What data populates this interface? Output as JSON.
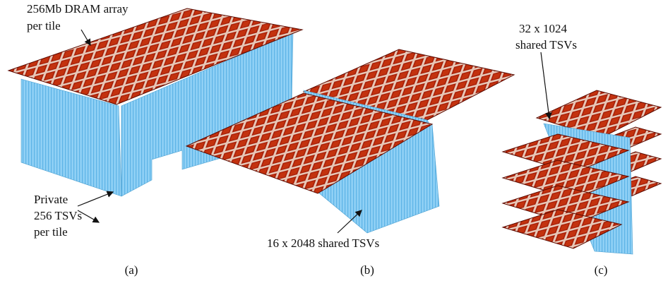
{
  "annotations": [
    {
      "lines": [
        "256Mb DRAM array",
        "per tile"
      ]
    },
    {
      "lines": [
        "Private",
        "256 TSVs",
        "per tile"
      ]
    },
    {
      "lines": [
        "16 x 2048 shared TSVs"
      ]
    },
    {
      "lines": [
        "32 x 1024",
        "shared TSVs"
      ]
    }
  ],
  "panels": [
    {
      "label": "(a)"
    },
    {
      "label": "(b)"
    },
    {
      "label": "(c)"
    }
  ]
}
